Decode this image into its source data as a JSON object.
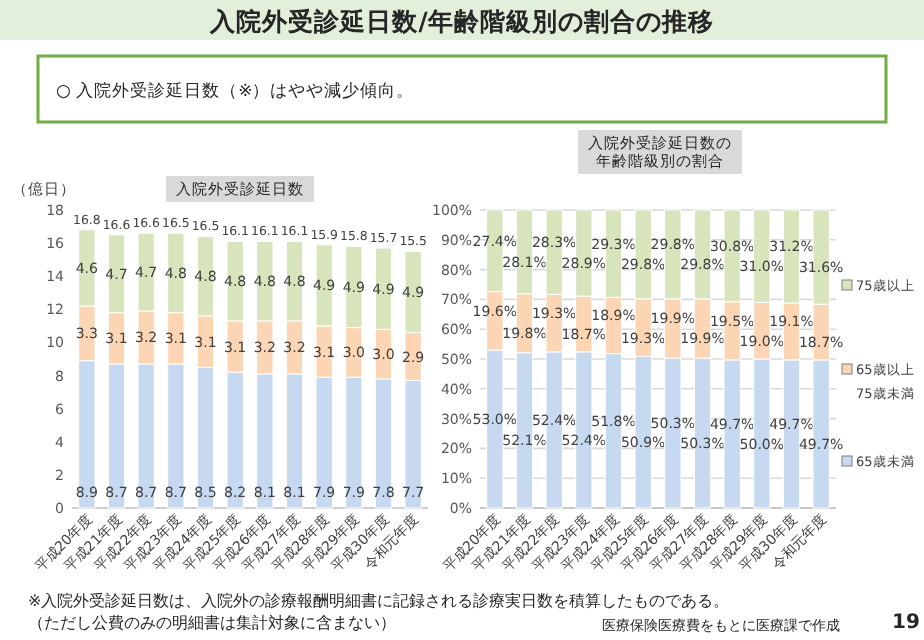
{
  "chart_data": [
    {
      "type": "bar",
      "title": "入院外受診延日数",
      "ylabel": "（億日）",
      "stacked": true,
      "grid": false,
      "legend": false,
      "categories": [
        "平成20年度",
        "平成21年度",
        "平成22年度",
        "平成23年度",
        "平成24年度",
        "平成25年度",
        "平成26年度",
        "平成27年度",
        "平成28年度",
        "平成29年度",
        "平成30年度",
        "令和元年度"
      ],
      "series": [
        {
          "color": "#c6d9f0",
          "values": [
            8.9,
            8.7,
            8.7,
            8.7,
            8.5,
            8.2,
            8.1,
            8.1,
            7.9,
            7.9,
            7.8,
            7.7
          ],
          "value_labels": [
            "8.9",
            "8.7",
            "8.7",
            "8.7",
            "8.5",
            "8.2",
            "8.1",
            "8.1",
            "7.9",
            "7.9",
            "7.8",
            "7.7"
          ]
        },
        {
          "color": "#fcd5b4",
          "values": [
            3.3,
            3.1,
            3.2,
            3.1,
            3.1,
            3.1,
            3.2,
            3.2,
            3.1,
            3.0,
            3.0,
            2.9
          ],
          "value_labels": [
            "3.3",
            "3.1",
            "3.2",
            "3.1",
            "3.1",
            "3.1",
            "3.2",
            "3.2",
            "3.1",
            "3.0",
            "3.0",
            "2.9"
          ]
        },
        {
          "color": "#d7e4bc",
          "values": [
            4.6,
            4.7,
            4.7,
            4.8,
            4.8,
            4.8,
            4.8,
            4.8,
            4.9,
            4.9,
            4.9,
            4.9
          ],
          "value_labels": [
            "4.6",
            "4.7",
            "4.7",
            "4.8",
            "4.8",
            "4.8",
            "4.8",
            "4.8",
            "4.9",
            "4.9",
            "4.9",
            "4.9"
          ]
        }
      ],
      "totals": [
        "16.8",
        "16.6",
        "16.6",
        "16.5",
        "16.5",
        "16.1",
        "16.1",
        "16.1",
        "15.9",
        "15.8",
        "15.7",
        "15.5"
      ],
      "ylim": [
        0,
        18
      ],
      "yticks": [
        0,
        2,
        4,
        6,
        8,
        10,
        12,
        14,
        16,
        18
      ],
      "annotations": [
        "入院外受診延日数/年齢階級別の割合の推移",
        "○ 入院外受診延日数（※）はやや減少傾向。"
      ]
    },
    {
      "type": "bar",
      "title": "入院外受診延日数の年齢階級別の割合",
      "stacked": true,
      "grid": "y",
      "legend": "right",
      "categories": [
        "平成20年度",
        "平成21年度",
        "平成22年度",
        "平成23年度",
        "平成24年度",
        "平成25年度",
        "平成26年度",
        "平成27年度",
        "平成28年度",
        "平成29年度",
        "平成30年度",
        "令和元年度"
      ],
      "series": [
        {
          "name": "65歳未満",
          "color": "#c6d9f0",
          "values": [
            53.0,
            52.1,
            52.4,
            52.4,
            51.8,
            50.9,
            50.3,
            50.3,
            49.7,
            50.0,
            49.7,
            49.7
          ],
          "value_labels": [
            "53.0%",
            "52.1%",
            "52.4%",
            "52.4%",
            "51.8%",
            "50.9%",
            "50.3%",
            "50.3%",
            "49.7%",
            "50.0%",
            "49.7%",
            "49.7%"
          ]
        },
        {
          "name": "65歳以上75歳未満",
          "color": "#fcd5b4",
          "values": [
            19.6,
            19.8,
            19.3,
            18.7,
            18.9,
            19.3,
            19.9,
            19.9,
            19.5,
            19.0,
            19.1,
            18.7
          ],
          "value_labels": [
            "19.6%",
            "19.8%",
            "19.3%",
            "18.7%",
            "18.9%",
            "19.3%",
            "19.9%",
            "19.9%",
            "19.5%",
            "19.0%",
            "19.1%",
            "18.7%"
          ]
        },
        {
          "name": "75歳以上",
          "color": "#d7e4bc",
          "values": [
            27.4,
            28.1,
            28.3,
            28.9,
            29.3,
            29.8,
            29.8,
            29.8,
            30.8,
            31.0,
            31.2,
            31.6
          ],
          "value_labels": [
            "27.4%",
            "28.1%",
            "28.3%",
            "28.9%",
            "29.3%",
            "29.8%",
            "29.8%",
            "29.8%",
            "30.8%",
            "31.0%",
            "31.2%",
            "31.6%"
          ]
        }
      ],
      "ylim": [
        0,
        100
      ],
      "yticks": [
        {
          "value": 0,
          "label": "0%"
        },
        {
          "value": 10,
          "label": "10%"
        },
        {
          "value": 20,
          "label": "20%"
        },
        {
          "value": 30,
          "label": "30%"
        },
        {
          "value": 40,
          "label": "40%"
        },
        {
          "value": 50,
          "label": "50%"
        },
        {
          "value": 60,
          "label": "60%"
        },
        {
          "value": 70,
          "label": "70%"
        },
        {
          "value": 80,
          "label": "80%"
        },
        {
          "value": 90,
          "label": "90%"
        },
        {
          "value": 100,
          "label": "100%"
        }
      ],
      "annotations": [
        "※入院外受診延日数は、入院外の診療報酬明細書に記録される診療実日数を積算したものである。",
        "（ただし公費のみの明細書は集計対象に含まない）",
        "医療保険医療費をもとに医療課で作成",
        "19"
      ]
    }
  ]
}
